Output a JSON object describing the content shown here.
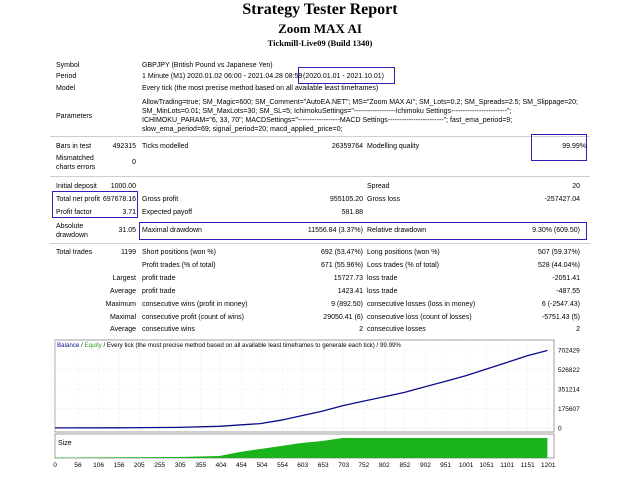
{
  "report": {
    "title": "Strategy Tester Report",
    "subtitle": "Zoom MAX AI",
    "server": "Tickmill-Live09 (Build 1340)"
  },
  "info": {
    "symbol_label": "Symbol",
    "symbol_value": "GBPJPY (British Pound vs Japanese Yen)",
    "period_label": "Period",
    "period_value": "1 Minute (M1) 2020.01.02 06:00 - 2021.04.28 08:59",
    "period_highlight": "(2020.01.01 - 2021.10.01)",
    "model_label": "Model",
    "model_value": "Every tick (the most precise method based on all available least timeframes)",
    "parameters_label": "Parameters",
    "parameters_lines": [
      "AllowTrading=true; SM_Magic=600; SM_Comment=\"AutoEA.NET\"; MS=\"Zoom MAX AI\"; SM_Lots=0.2; SM_Spreads=2.5; SM_Slippage=20;",
      "SM_MinLots=0.01; SM_MaxLots=30; SM_SL=5; IchimokuSettings=\"------------------Ichimoku Settings------------------------\";",
      "ICHIMOKU_PARAM=\"6, 33, 70\"; MACDSettings=\"------------------MACD Settings------------------------\"; fast_ema_period=9;",
      "slow_ema_period=69; signal_period=20; macd_applied_price=0;"
    ]
  },
  "stats": {
    "bars_label": "Bars in test",
    "bars_value": "492315",
    "ticks_label": "Ticks modelled",
    "ticks_value": "26359764",
    "quality_label": "Modelling quality",
    "quality_value": "99.99%",
    "mismatch_label_1": "Mismatched",
    "mismatch_label_2": "charts errors",
    "mismatch_value": "0",
    "deposit_label": "Initial deposit",
    "deposit_value": "1000.00",
    "spread_label": "Spread",
    "spread_value": "20",
    "net_profit_label": "Total net profit",
    "net_profit_value": "697678.16",
    "gross_profit_label": "Gross profit",
    "gross_profit_value": "955105.20",
    "gross_loss_label": "Gross loss",
    "gross_loss_value": "-257427.04",
    "profit_factor_label": "Profit factor",
    "profit_factor_value": "3.71",
    "expected_payoff_label": "Expected payoff",
    "expected_payoff_value": "581.88",
    "abs_dd_label_1": "Absolute",
    "abs_dd_label_2": "drawdown",
    "abs_dd_value": "31.05",
    "max_dd_label": "Maximal drawdown",
    "max_dd_value": "11556.84 (3.37%)",
    "rel_dd_label": "Relative drawdown",
    "rel_dd_value": "9.30% (609.50)",
    "total_trades_label": "Total trades",
    "total_trades_value": "1199",
    "short_label": "Short positions (won %)",
    "short_value": "692 (53.47%)",
    "long_label": "Long positions (won %)",
    "long_value": "507 (59.37%)",
    "profit_trades_label": "Profit trades (% of total)",
    "profit_trades_value": "671 (55.96%)",
    "loss_trades_label": "Loss trades (% of total)",
    "loss_trades_value": "528 (44.04%)",
    "largest_label": "Largest",
    "largest_profit_label": "profit trade",
    "largest_profit_value": "15727.73",
    "largest_loss_label": "loss trade",
    "largest_loss_value": "-2051.41",
    "average_label": "Average",
    "average_profit_label": "profit trade",
    "average_profit_value": "1423.41",
    "average_loss_label": "loss trade",
    "average_loss_value": "-487.55",
    "maximum_label": "Maximum",
    "max_cons_wins_label": "consecutive wins (profit in money)",
    "max_cons_wins_value": "9 (892.50)",
    "max_cons_losses_label": "consecutive losses (loss in money)",
    "max_cons_losses_value": "6 (-2547.43)",
    "maximal_label": "Maximal",
    "maximal_cons_profit_label": "consecutive profit (count of wins)",
    "maximal_cons_profit_value": "29050.41 (6)",
    "maximal_cons_loss_label": "consecutive loss (count of losses)",
    "maximal_cons_loss_value": "-5751.43 (5)",
    "average2_label": "Average",
    "avg_cons_wins_label": "consecutive wins",
    "avg_cons_wins_value": "2",
    "avg_cons_losses_label": "consecutive losses",
    "avg_cons_losses_value": "2"
  },
  "colors": {
    "highlight_box": "#2b20b8",
    "balance_line": "#0a0a8c",
    "equity_text": "#2aa02a",
    "size_fill": "#1bb31b"
  },
  "chart_data": {
    "type": "line",
    "legend": {
      "balance": "Balance",
      "slash1": " / ",
      "equity": "Equity",
      "rest": " / Every tick (the most precise method based on all available least timeframes to generate each tick) / 99.99%"
    },
    "size_label": "Size",
    "ylim": [
      0,
      702429
    ],
    "y_ticks": [
      "702429",
      "526822",
      "351214",
      "175607",
      "0"
    ],
    "y_tick_values": [
      702429,
      526822,
      351214,
      175607,
      0
    ],
    "x_ticks": [
      "0",
      "56",
      "106",
      "156",
      "205",
      "255",
      "305",
      "355",
      "404",
      "454",
      "504",
      "554",
      "603",
      "653",
      "703",
      "752",
      "802",
      "852",
      "902",
      "951",
      "1001",
      "1051",
      "1101",
      "1151",
      "1201"
    ],
    "x_tick_values": [
      0,
      56,
      106,
      156,
      205,
      255,
      305,
      355,
      404,
      454,
      504,
      554,
      603,
      653,
      703,
      752,
      802,
      852,
      902,
      951,
      1001,
      1051,
      1101,
      1151,
      1201
    ],
    "xlim": [
      0,
      1215
    ],
    "series": [
      {
        "name": "Balance",
        "x": [
          0,
          150,
          300,
          400,
          500,
          550,
          600,
          650,
          700,
          750,
          800,
          850,
          900,
          950,
          1000,
          1050,
          1100,
          1150,
          1199
        ],
        "values": [
          1000,
          2000,
          5000,
          15000,
          40000,
          70000,
          110000,
          150000,
          200000,
          240000,
          280000,
          320000,
          370000,
          420000,
          470000,
          530000,
          590000,
          650000,
          697678
        ]
      }
    ],
    "size_series": {
      "x": [
        0,
        300,
        400,
        450,
        500,
        550,
        600,
        650,
        700,
        1199
      ],
      "values": [
        0.02,
        0.05,
        0.1,
        0.3,
        0.45,
        0.6,
        0.75,
        0.85,
        1.0,
        1.0
      ]
    }
  }
}
